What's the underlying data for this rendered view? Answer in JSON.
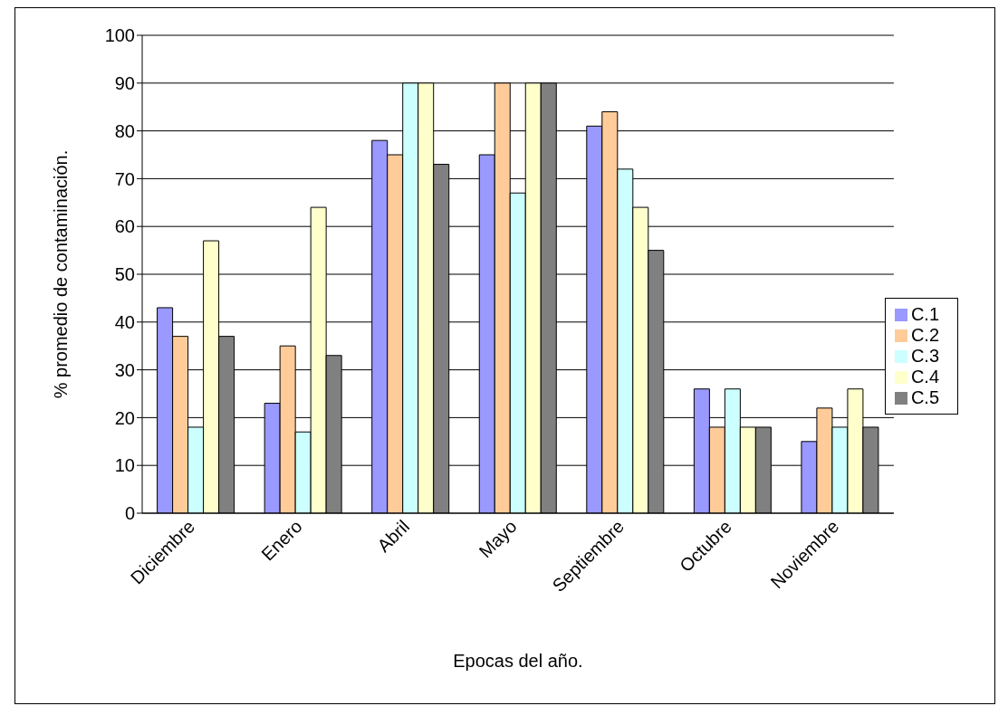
{
  "chart_data": {
    "type": "bar",
    "xlabel": "Epocas del año.",
    "ylabel": "% promedio de contaminación.",
    "categories": [
      "Diciembre",
      "Enero",
      "Abril",
      "Mayo",
      "Septiembre",
      "Octubre",
      "Noviembre"
    ],
    "series": [
      {
        "name": "C.1",
        "color": "#9999ff",
        "values": [
          43,
          23,
          78,
          75,
          81,
          26,
          15
        ]
      },
      {
        "name": "C.2",
        "color": "#ffcc99",
        "values": [
          37,
          35,
          75,
          90,
          84,
          18,
          22
        ]
      },
      {
        "name": "C.3",
        "color": "#ccffff",
        "values": [
          18,
          17,
          90,
          67,
          72,
          26,
          18
        ]
      },
      {
        "name": "C.4",
        "color": "#ffffcc",
        "values": [
          57,
          64,
          90,
          90,
          64,
          18,
          26
        ]
      },
      {
        "name": "C.5",
        "color": "#808080",
        "values": [
          37,
          33,
          73,
          90,
          55,
          18,
          18
        ]
      }
    ],
    "ylim": [
      0,
      100
    ],
    "yticks": [
      0,
      10,
      20,
      30,
      40,
      50,
      60,
      70,
      80,
      90,
      100
    ],
    "grid": "y",
    "legend": "right"
  }
}
